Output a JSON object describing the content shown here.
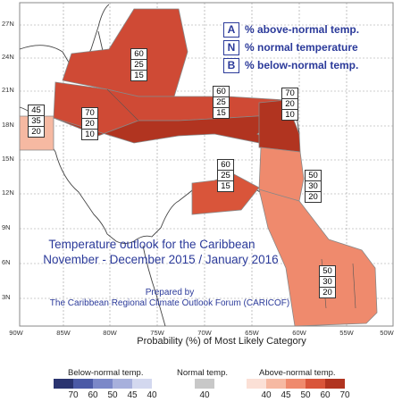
{
  "map": {
    "y_axis_labels": [
      "27N",
      "24N",
      "21N",
      "18N",
      "15N",
      "12N",
      "9N",
      "6N",
      "3N"
    ],
    "x_axis_labels": [
      "90W",
      "85W",
      "80W",
      "75W",
      "70W",
      "65W",
      "60W",
      "55W",
      "50W"
    ]
  },
  "legend_key": [
    {
      "letter": "A",
      "text": "% above-normal temp."
    },
    {
      "letter": "N",
      "text": "% normal temperature"
    },
    {
      "letter": "B",
      "text": "% below-normal temp."
    }
  ],
  "title": {
    "line1": "Temperature outlook for the Caribbean",
    "line2": "November - December 2015 / January 2016",
    "prepared": "Prepared by",
    "forum": "The Caribbean Regional Climate Outlook Forum (CARICOF)"
  },
  "boxes": [
    {
      "a": "60",
      "n": "25",
      "b": "15"
    },
    {
      "a": "45",
      "n": "35",
      "b": "20"
    },
    {
      "a": "70",
      "n": "20",
      "b": "10"
    },
    {
      "a": "60",
      "n": "25",
      "b": "15"
    },
    {
      "a": "70",
      "n": "20",
      "b": "10"
    },
    {
      "a": "60",
      "n": "25",
      "b": "15"
    },
    {
      "a": "50",
      "n": "30",
      "b": "20"
    },
    {
      "a": "50",
      "n": "30",
      "b": "20"
    }
  ],
  "colorbar": {
    "title": "Probability (%) of Most Likely Category",
    "below_label": "Below-normal temp.",
    "normal_label": "Normal temp.",
    "above_label": "Above-normal temp.",
    "below_ticks": [
      "70",
      "60",
      "50",
      "45",
      "40"
    ],
    "normal_ticks": [
      "40"
    ],
    "above_ticks": [
      "40",
      "45",
      "50",
      "60",
      "70"
    ],
    "below_colors": [
      "#2a3470",
      "#4b5aa6",
      "#7b88c8",
      "#a7b0dc",
      "#d3d8ef"
    ],
    "normal_color": "#c8c8c8",
    "above_colors": [
      "#fbe0d6",
      "#f6b9a2",
      "#ef8a6d",
      "#d9553a",
      "#b13420"
    ]
  }
}
